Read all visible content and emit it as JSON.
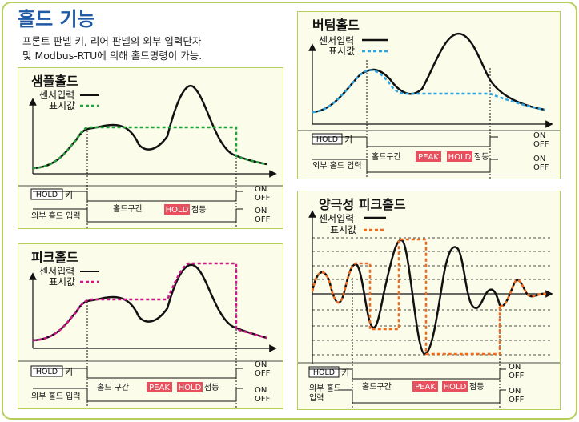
{
  "header": {
    "title": "홀드 기능",
    "desc1": "프론트 판넬 키, 리어 판넬의 외부 입력단자",
    "desc2": "및 Modbus-RTU에 의해 홀드명령이 가능."
  },
  "legend": {
    "sensor": "센서입력",
    "display": "표시값"
  },
  "labels": {
    "hold_key": "HOLD",
    "key_suffix": "키",
    "ext_input": "외부 홀드 입력",
    "ext_input_l1": "외부 홀드",
    "ext_input_l2": "입력",
    "hold_period": "홀드구간",
    "hold_period_sp": "홀드 구간",
    "peak": "PEAK",
    "hold": "HOLD",
    "blink": "점등",
    "on": "ON",
    "off": "OFF"
  },
  "panels": {
    "sample": {
      "title": "샘플홀드"
    },
    "peak": {
      "title": "피크홀드"
    },
    "bottom": {
      "title": "버텀홀드"
    },
    "bipolar": {
      "title": "양극성  피크홀드"
    }
  },
  "colors": {
    "sensor": "#111111",
    "sample": "#22a23a",
    "peak": "#d4148c",
    "bottom": "#29a6e6",
    "bipolar": "#f06a1e",
    "badge": "#e8505e",
    "border": "#b6cf5c",
    "title": "#1e5aa6"
  }
}
